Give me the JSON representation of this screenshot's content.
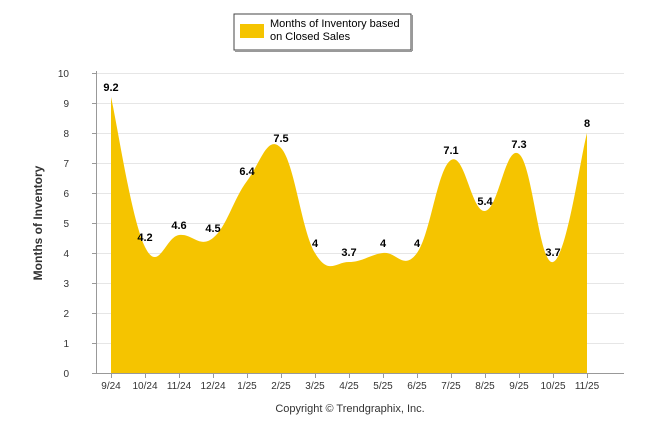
{
  "chart_data": {
    "type": "area",
    "categories": [
      "9/24",
      "10/24",
      "11/24",
      "12/24",
      "1/25",
      "2/25",
      "3/25",
      "4/25",
      "5/25",
      "6/25",
      "7/25",
      "8/25",
      "9/25",
      "10/25",
      "11/25"
    ],
    "series": [
      {
        "name": "Months of Inventory based on Closed Sales",
        "values": [
          9.2,
          4.2,
          4.6,
          4.5,
          6.4,
          7.5,
          4,
          3.7,
          4,
          4,
          7.1,
          5.4,
          7.3,
          3.7,
          8
        ],
        "labels": [
          "9.2",
          "4.2",
          "4.6",
          "4.5",
          "6.4",
          "7.5",
          "4",
          "3.7",
          "4",
          "4",
          "7.1",
          "5.4",
          "7.3",
          "3.7",
          "8"
        ],
        "color": "#f5c400"
      }
    ],
    "yticks": [
      "0",
      "1",
      "2",
      "3",
      "4",
      "5",
      "6",
      "7",
      "8",
      "9",
      "10"
    ],
    "ylim": [
      0,
      10
    ],
    "ylabel": "Months of Inventory",
    "xlabel": "",
    "legend": {
      "lines": [
        "Months of Inventory based",
        "on Closed Sales"
      ],
      "position": "top-center"
    },
    "grid": true,
    "footer": "Copyright © Trendgraphix, Inc."
  }
}
